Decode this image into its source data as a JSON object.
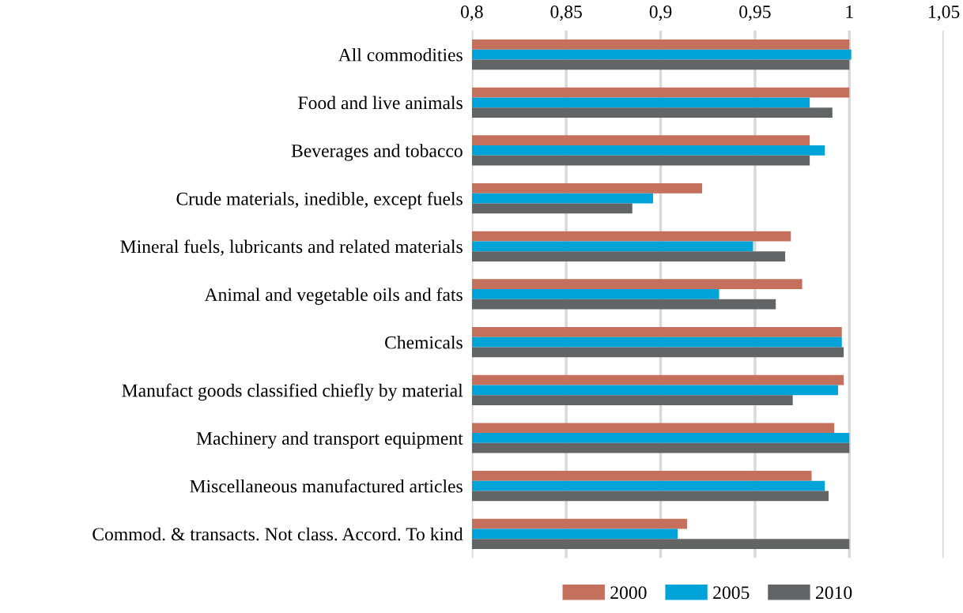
{
  "chart_data": {
    "type": "bar",
    "orientation": "horizontal",
    "categories": [
      "All commodities",
      "Food and live animals",
      "Beverages and tobacco",
      "Crude materials, inedible, except fuels",
      "Mineral fuels, lubricants and related materials",
      "Animal and vegetable oils and fats",
      "Chemicals",
      "Manufact goods classified chiefly by material",
      "Machinery and transport equipment",
      "Miscellaneous manufactured articles",
      "Commod. & transacts. Not class. Accord. To kind"
    ],
    "series": [
      {
        "name": "2000",
        "color": "#c5705d",
        "values": [
          1.0,
          1.0,
          0.979,
          0.922,
          0.969,
          0.975,
          0.996,
          0.997,
          0.992,
          0.98,
          0.914
        ]
      },
      {
        "name": "2005",
        "color": "#00a3d8",
        "values": [
          1.001,
          0.979,
          0.987,
          0.896,
          0.949,
          0.931,
          0.996,
          0.994,
          1.0,
          0.987,
          0.909
        ]
      },
      {
        "name": "2010",
        "color": "#636466",
        "values": [
          1.0,
          0.991,
          0.979,
          0.885,
          0.966,
          0.961,
          0.997,
          0.97,
          1.0,
          0.989,
          1.0
        ]
      }
    ],
    "xlim": [
      0.8,
      1.05
    ],
    "xticks": [
      {
        "value": 0.8,
        "label": "0,8"
      },
      {
        "value": 0.85,
        "label": "0,85"
      },
      {
        "value": 0.9,
        "label": "0,9"
      },
      {
        "value": 0.95,
        "label": "0,95"
      },
      {
        "value": 1.0,
        "label": "1"
      },
      {
        "value": 1.05,
        "label": "1,05"
      }
    ],
    "grid": "x",
    "legend": "bottom"
  }
}
